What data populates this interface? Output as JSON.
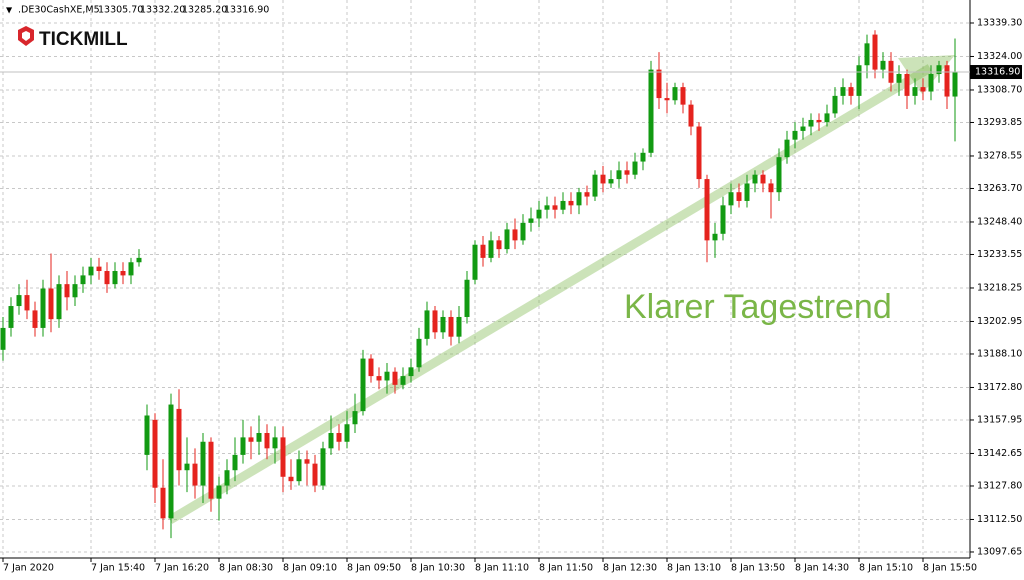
{
  "chart_data": {
    "type": "candlestick",
    "symbol": ".DE30CashXE,M5",
    "header_quote": [
      "13305.70",
      "13332.20",
      "13285.20",
      "13316.90"
    ],
    "logo": "TICKMILL",
    "annotation": "Klarer Tagestrend",
    "up_color": "#129a12",
    "down_color": "#e5231e",
    "grid": true,
    "ylim": [
      13094.9,
      13349.8
    ],
    "yticks": [
      {
        "value": 13339.3,
        "label": "13339.30"
      },
      {
        "value": 13324,
        "label": "13324.00"
      },
      {
        "value": 13308.7,
        "label": "13308.70"
      },
      {
        "value": 13293.85,
        "label": "13293.85"
      },
      {
        "value": 13278.55,
        "label": "13278.55"
      },
      {
        "value": 13263.7,
        "label": "13263.70"
      },
      {
        "value": 13248.4,
        "label": "13248.40"
      },
      {
        "value": 13233.55,
        "label": "13233.55"
      },
      {
        "value": 13218.25,
        "label": "13218.25"
      },
      {
        "value": 13202.95,
        "label": "13202.95"
      },
      {
        "value": 13188.1,
        "label": "13188.10"
      },
      {
        "value": 13172.8,
        "label": "13172.80"
      },
      {
        "value": 13157.95,
        "label": "13157.95"
      },
      {
        "value": 13142.65,
        "label": "13142.65"
      },
      {
        "value": 13127.8,
        "label": "13127.80"
      },
      {
        "value": 13112.5,
        "label": "13112.50"
      },
      {
        "value": 13097.65,
        "label": "13097.65"
      }
    ],
    "current_price": {
      "value": 13316.9,
      "label": "13316.90"
    },
    "categories": [
      "7 Jan 2020",
      null,
      null,
      null,
      null,
      null,
      null,
      null,
      null,
      null,
      null,
      "7 Jan 15:40",
      null,
      null,
      null,
      null,
      null,
      null,
      null,
      "7 Jan 16:20",
      null,
      null,
      null,
      null,
      null,
      null,
      null,
      "8 Jan 08:30",
      null,
      null,
      null,
      null,
      null,
      null,
      null,
      "8 Jan 09:10",
      null,
      null,
      null,
      null,
      null,
      null,
      null,
      "8 Jan 09:50",
      null,
      null,
      null,
      null,
      null,
      null,
      null,
      "8 Jan 10:30",
      null,
      null,
      null,
      null,
      null,
      null,
      null,
      "8 Jan 11:10",
      null,
      null,
      null,
      null,
      null,
      null,
      null,
      "8 Jan 11:50",
      null,
      null,
      null,
      null,
      null,
      null,
      null,
      "8 Jan 12:30",
      null,
      null,
      null,
      null,
      null,
      null,
      null,
      "8 Jan 13:10",
      null,
      null,
      null,
      null,
      null,
      null,
      null,
      "8 Jan 13:50",
      null,
      null,
      null,
      null,
      null,
      null,
      null,
      "8 Jan 14:30",
      null,
      null,
      null,
      null,
      null,
      null,
      null,
      "8 Jan 15:10",
      null,
      null,
      null,
      null,
      null,
      null,
      null,
      "8 Jan 15:50",
      null,
      null,
      null,
      null
    ],
    "open": [
      13190,
      13200,
      13210,
      13215,
      13208,
      13200,
      13218,
      13204,
      13220,
      13214,
      13220,
      13224,
      13228,
      13226,
      13220,
      13226,
      13224,
      13230,
      13142,
      13158,
      13127,
      13113,
      13163,
      13135,
      13138,
      13128,
      13148,
      13122,
      13128,
      13135,
      13142,
      13150,
      13148,
      13152,
      13145,
      13150,
      13132,
      13130,
      13140,
      13138,
      13128,
      13145,
      13152,
      13148,
      13156,
      13162,
      13186,
      13178,
      13176,
      13180,
      13174,
      13178,
      13182,
      13195,
      13208,
      13198,
      13205,
      13196,
      13205,
      13222,
      13238,
      13232,
      13240,
      13236,
      13245,
      13240,
      13248,
      13250,
      13254,
      13256,
      13254,
      13258,
      13256,
      13262,
      13260,
      13270,
      13266,
      13268,
      13272,
      13270,
      13276,
      13280,
      13318,
      13305,
      13304,
      13310,
      13302,
      13292,
      13268,
      13240,
      13243,
      13256,
      13262,
      13258,
      13266,
      13270,
      13266,
      13262,
      13278,
      13286,
      13290,
      13292,
      13295,
      13294,
      13298,
      13306,
      13310,
      13306,
      13320,
      13334,
      13318,
      13322,
      13312,
      13316,
      13306,
      13310,
      13308,
      13316,
      13320,
      13305.7
    ],
    "high": [
      13205,
      13214,
      13220,
      13222,
      13212,
      13222,
      13234,
      13224,
      13226,
      13224,
      13228,
      13232,
      13232,
      13230,
      13230,
      13230,
      13232,
      13236,
      13165,
      13161,
      13140,
      13170,
      13172,
      13150,
      13145,
      13152,
      13150,
      13132,
      13140,
      13150,
      13158,
      13155,
      13160,
      13156,
      13155,
      13155,
      13140,
      13144,
      13144,
      13142,
      13148,
      13160,
      13156,
      13162,
      13170,
      13190,
      13188,
      13182,
      13184,
      13182,
      13182,
      13186,
      13200,
      13212,
      13210,
      13208,
      13208,
      13210,
      13226,
      13240,
      13242,
      13244,
      13242,
      13248,
      13250,
      13252,
      13255,
      13258,
      13260,
      13260,
      13262,
      13262,
      13264,
      13265,
      13272,
      13274,
      13272,
      13276,
      13276,
      13280,
      13282,
      13322,
      13326,
      13312,
      13312,
      13312,
      13304,
      13294,
      13270,
      13248,
      13260,
      13266,
      13266,
      13270,
      13272,
      13272,
      13268,
      13282,
      13290,
      13294,
      13296,
      13298,
      13298,
      13302,
      13310,
      13314,
      13312,
      13324,
      13334,
      13336,
      13326,
      13326,
      13320,
      13318,
      13314,
      13314,
      13320,
      13322,
      13322,
      13332.2
    ],
    "low": [
      13185,
      13196,
      13206,
      13204,
      13196,
      13196,
      13198,
      13200,
      13208,
      13210,
      13216,
      13220,
      13222,
      13216,
      13218,
      13220,
      13220,
      13228,
      13135,
      13120,
      13108,
      13104,
      13128,
      13125,
      13122,
      13120,
      13116,
      13112,
      13124,
      13130,
      13138,
      13140,
      13142,
      13140,
      13138,
      13125,
      13126,
      13128,
      13128,
      13125,
      13126,
      13142,
      13144,
      13145,
      13152,
      13160,
      13175,
      13172,
      13170,
      13170,
      13172,
      13175,
      13180,
      13192,
      13195,
      13195,
      13192,
      13193,
      13202,
      13220,
      13228,
      13230,
      13232,
      13234,
      13236,
      13238,
      13244,
      13246,
      13250,
      13250,
      13252,
      13252,
      13252,
      13256,
      13258,
      13262,
      13264,
      13264,
      13266,
      13268,
      13272,
      13278,
      13300,
      13298,
      13302,
      13298,
      13288,
      13264,
      13230,
      13232,
      13240,
      13252,
      13255,
      13255,
      13262,
      13262,
      13250,
      13258,
      13275,
      13282,
      13286,
      13288,
      13290,
      13292,
      13296,
      13302,
      13302,
      13300,
      13314,
      13314,
      13314,
      13308,
      13306,
      13300,
      13302,
      13304,
      13304,
      13312,
      13300,
      13285.2
    ],
    "close": [
      13200,
      13210,
      13215,
      13208,
      13200,
      13218,
      13204,
      13220,
      13214,
      13220,
      13224,
      13228,
      13226,
      13220,
      13226,
      13224,
      13230,
      13232,
      13160,
      13127,
      13113,
      13165,
      13135,
      13138,
      13128,
      13148,
      13122,
      13128,
      13135,
      13142,
      13150,
      13148,
      13152,
      13145,
      13150,
      13132,
      13130,
      13140,
      13138,
      13128,
      13145,
      13152,
      13148,
      13156,
      13162,
      13186,
      13178,
      13176,
      13180,
      13174,
      13178,
      13182,
      13195,
      13208,
      13198,
      13205,
      13196,
      13205,
      13222,
      13238,
      13232,
      13240,
      13236,
      13245,
      13240,
      13248,
      13250,
      13254,
      13256,
      13254,
      13258,
      13256,
      13262,
      13260,
      13270,
      13266,
      13268,
      13272,
      13270,
      13276,
      13280,
      13318,
      13305,
      13304,
      13310,
      13302,
      13292,
      13268,
      13240,
      13243,
      13256,
      13262,
      13258,
      13266,
      13270,
      13266,
      13262,
      13278,
      13286,
      13290,
      13292,
      13295,
      13294,
      13298,
      13306,
      13310,
      13306,
      13320,
      13330,
      13318,
      13322,
      13312,
      13316,
      13306,
      13310,
      13308,
      13316,
      13320,
      13305.7,
      13316.9
    ]
  }
}
